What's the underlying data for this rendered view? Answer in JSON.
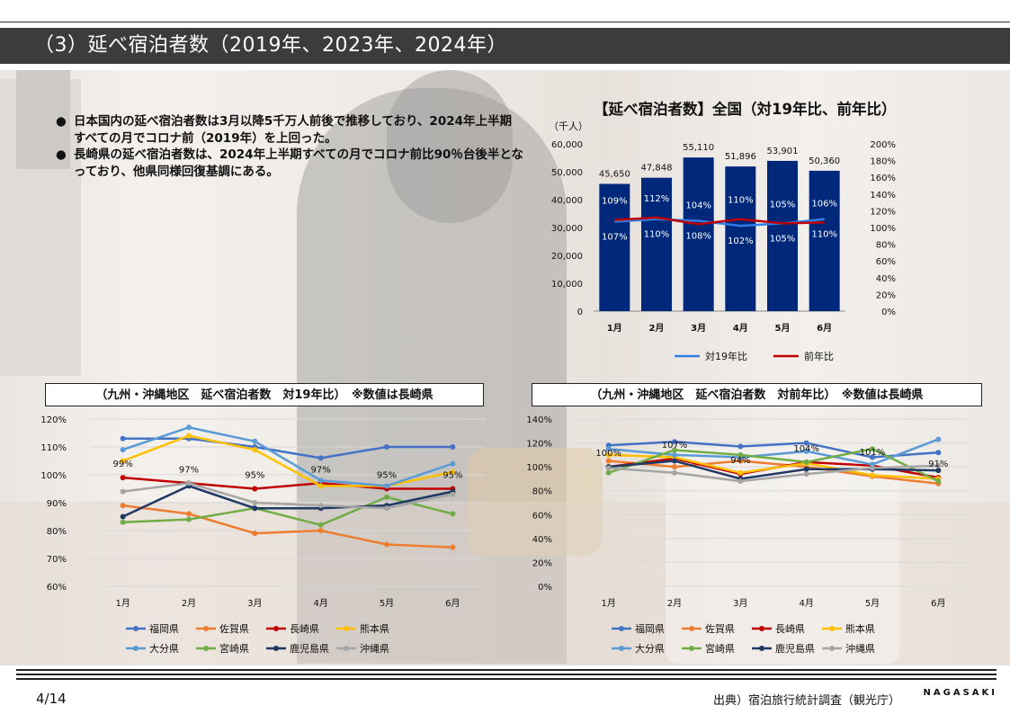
{
  "slide": {
    "title": "（3）延べ宿泊者数（2019年、2023年、2024年）",
    "page": "4/14",
    "source": "出典）宿泊旅行統計調査（観光庁）",
    "brand": "NAGASAKI"
  },
  "bullets": [
    "日本国内の延べ宿泊者数は3月以降5千万人前後で推移しており、2024年上半期すべての月でコロナ前（2019年）を上回った。",
    "長崎県の延べ宿泊者数は、2024年上半期すべての月でコロナ前比90％台後半となっており、他県同様回復基調にある。"
  ],
  "bullet_marker": "●",
  "colors": {
    "bar": "#00287a",
    "vs2019": "#2f7fe6",
    "yoy": "#c00000",
    "福岡県": "#4472c4",
    "佐賀県": "#ed7d31",
    "長崎県": "#c00000",
    "熊本県": "#ffc000",
    "大分県": "#5b9bd5",
    "宮崎県": "#70ad47",
    "鹿児島県": "#1f3864",
    "沖縄県": "#a5a5a5"
  },
  "chart_data": [
    {
      "type": "bar",
      "title": "【延べ宿泊者数】全国（対19年比、前年比）",
      "ylabel": "（千人）",
      "categories": [
        "1月",
        "2月",
        "3月",
        "4月",
        "5月",
        "6月"
      ],
      "ylim": [
        0,
        60000
      ],
      "yticks": [
        "0",
        "10,000",
        "20,000",
        "30,000",
        "40,000",
        "50,000",
        "60,000"
      ],
      "y2lim": [
        0,
        200
      ],
      "y2ticks": [
        "0%",
        "20%",
        "40%",
        "60%",
        "80%",
        "100%",
        "120%",
        "140%",
        "160%",
        "180%",
        "200%"
      ],
      "values": [
        45650,
        47848,
        55110,
        51896,
        53901,
        50360
      ],
      "value_labels": [
        "45,650",
        "47,848",
        "55,110",
        "51,896",
        "53,901",
        "50,360"
      ],
      "lines": [
        {
          "name": "対19年比",
          "color": "#2f7fe6",
          "values": [
            107,
            110,
            108,
            102,
            105,
            110
          ],
          "labels": [
            "107%",
            "110%",
            "108%",
            "102%",
            "105%",
            "110%"
          ]
        },
        {
          "name": "前年比",
          "color": "#c00000",
          "values": [
            109,
            112,
            104,
            110,
            105,
            106
          ],
          "labels": [
            "109%",
            "112%",
            "104%",
            "110%",
            "105%",
            "106%"
          ]
        }
      ],
      "legend_position": "bottom"
    },
    {
      "type": "line",
      "title": "（九州・沖縄地区　延べ宿泊者数　対19年比）　※数値は長崎県",
      "categories": [
        "1月",
        "2月",
        "3月",
        "4月",
        "5月",
        "6月"
      ],
      "ylim": [
        60,
        120
      ],
      "yticks": [
        "60%",
        "70%",
        "80%",
        "90%",
        "100%",
        "110%",
        "120%"
      ],
      "series": [
        {
          "name": "福岡県",
          "values": [
            113,
            113,
            110,
            106,
            110,
            110
          ]
        },
        {
          "name": "佐賀県",
          "values": [
            89,
            86,
            79,
            80,
            75,
            74
          ]
        },
        {
          "name": "長崎県",
          "values": [
            99,
            97,
            95,
            97,
            95,
            95
          ]
        },
        {
          "name": "熊本県",
          "values": [
            105,
            114,
            109,
            96,
            96,
            101
          ]
        },
        {
          "name": "大分県",
          "values": [
            109,
            117,
            112,
            98,
            96,
            104
          ]
        },
        {
          "name": "宮崎県",
          "values": [
            83,
            84,
            88,
            82,
            92,
            86
          ]
        },
        {
          "name": "鹿児島県",
          "values": [
            85,
            96,
            88,
            88,
            89,
            94
          ]
        },
        {
          "name": "沖縄県",
          "values": [
            94,
            97,
            90,
            89,
            88,
            93
          ]
        }
      ],
      "highlight": {
        "series": "長崎県",
        "labels": [
          "99%",
          "97%",
          "95%",
          "97%",
          "95%",
          "95%"
        ]
      },
      "legend_position": "bottom"
    },
    {
      "type": "line",
      "title": "（九州・沖縄地区　延べ宿泊者数　対前年比）　※数値は長崎県",
      "categories": [
        "1月",
        "2月",
        "3月",
        "4月",
        "5月",
        "6月"
      ],
      "ylim": [
        0,
        140
      ],
      "yticks": [
        "0%",
        "20%",
        "40%",
        "60%",
        "80%",
        "100%",
        "120%",
        "140%"
      ],
      "series": [
        {
          "name": "福岡県",
          "values": [
            118,
            121,
            117,
            120,
            108,
            112
          ]
        },
        {
          "name": "佐賀県",
          "values": [
            105,
            100,
            105,
            100,
            92,
            86
          ]
        },
        {
          "name": "長崎県",
          "values": [
            100,
            107,
            94,
            104,
            101,
            91
          ]
        },
        {
          "name": "熊本県",
          "values": [
            110,
            108,
            95,
            103,
            93,
            90
          ]
        },
        {
          "name": "大分県",
          "values": [
            115,
            110,
            108,
            113,
            102,
            123
          ]
        },
        {
          "name": "宮崎県",
          "values": [
            95,
            114,
            110,
            104,
            115,
            88
          ]
        },
        {
          "name": "鹿児島県",
          "values": [
            100,
            105,
            90,
            98,
            98,
            97
          ]
        },
        {
          "name": "沖縄県",
          "values": [
            99,
            95,
            88,
            94,
            99,
            101
          ]
        }
      ],
      "highlight": {
        "series": "長崎県",
        "labels": [
          "100%",
          "107%",
          "94%",
          "104%",
          "101%",
          "91%"
        ]
      },
      "legend_position": "bottom"
    }
  ]
}
